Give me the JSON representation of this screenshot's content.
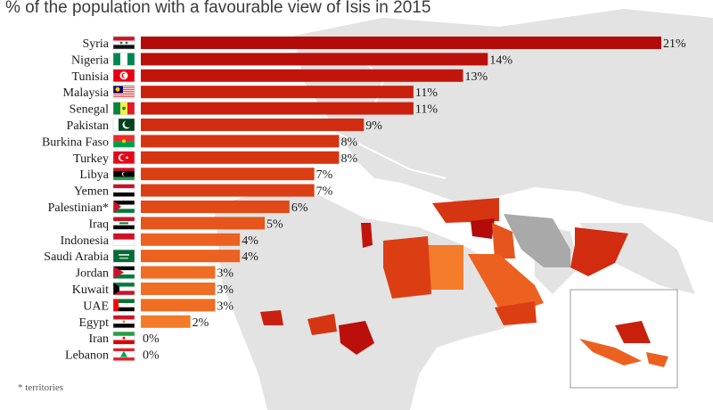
{
  "title": "% of the population with a favourable view of Isis in 2015",
  "footnote": "* territories",
  "chart_data": {
    "type": "bar",
    "orientation": "horizontal",
    "title": "% of the population with a favourable view of Isis in 2015",
    "xlim": [
      0,
      21
    ],
    "categories": [
      "Syria",
      "Nigeria",
      "Tunisia",
      "Malaysia",
      "Senegal",
      "Pakistan",
      "Burkina Faso",
      "Turkey",
      "Libya",
      "Yemen",
      "Palestinian*",
      "Iraq",
      "Indonesia",
      "Saudi Arabia",
      "Jordan",
      "Kuwait",
      "UAE",
      "Egypt",
      "Iran",
      "Lebanon"
    ],
    "values": [
      21,
      14,
      13,
      11,
      11,
      9,
      8,
      8,
      7,
      7,
      6,
      5,
      4,
      4,
      3,
      3,
      3,
      2,
      0,
      0
    ],
    "value_labels": [
      "21%",
      "14%",
      "13%",
      "11%",
      "11%",
      "9%",
      "8%",
      "8%",
      "7%",
      "7%",
      "6%",
      "5%",
      "4%",
      "4%",
      "3%",
      "3%",
      "3%",
      "2%",
      "0%",
      "0%"
    ],
    "flags": [
      "syria-flag-icon",
      "nigeria-flag-icon",
      "tunisia-flag-icon",
      "malaysia-flag-icon",
      "senegal-flag-icon",
      "pakistan-flag-icon",
      "burkina-faso-flag-icon",
      "turkey-flag-icon",
      "libya-flag-icon",
      "yemen-flag-icon",
      "palestine-flag-icon",
      "iraq-flag-icon",
      "indonesia-flag-icon",
      "saudi-arabia-flag-icon",
      "jordan-flag-icon",
      "kuwait-flag-icon",
      "uae-flag-icon",
      "egypt-flag-icon",
      "iran-flag-icon",
      "lebanon-flag-icon"
    ],
    "bar_colors": [
      "#b30a0a",
      "#bb0f0b",
      "#c1150c",
      "#c9200d",
      "#c9200d",
      "#d12c10",
      "#d63512",
      "#d63512",
      "#dc3e14",
      "#dc3e14",
      "#e24a18",
      "#e6551b",
      "#ec611f",
      "#ec611f",
      "#f06d24",
      "#f06d24",
      "#f06d24",
      "#f47b2a",
      "#f47b2a",
      "#f47b2a"
    ],
    "grid": false,
    "legend": "none"
  },
  "map_colors": {
    "land": "#e4e4e4",
    "sea": "#ffffff",
    "neutral_country": "#a9a9a9"
  }
}
